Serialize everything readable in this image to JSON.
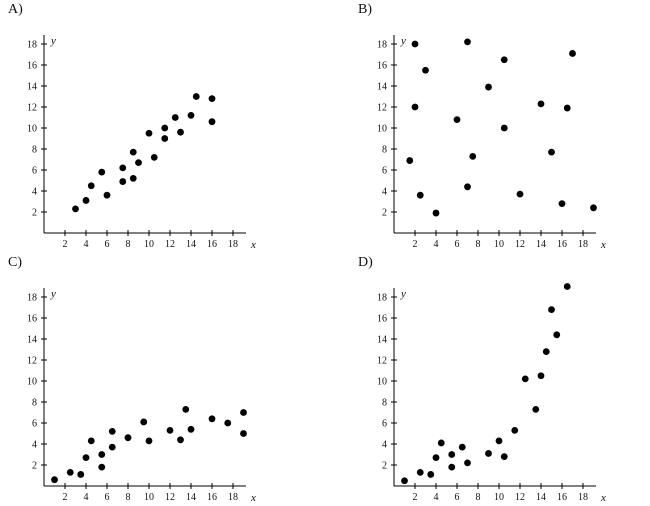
{
  "chart_data": [
    {
      "type": "scatter",
      "label": "A)",
      "xlabel": "x",
      "ylabel": "y",
      "xlim": [
        0,
        20
      ],
      "ylim": [
        0,
        20
      ],
      "x_ticks": [
        "2",
        "4",
        "6",
        "8",
        "10",
        "12",
        "14",
        "16",
        "18"
      ],
      "y_ticks": [
        "2",
        "4",
        "6",
        "8",
        "10",
        "12",
        "14",
        "16",
        "18"
      ],
      "x": [
        3,
        4,
        4.5,
        5.5,
        6,
        7.5,
        7.5,
        8.5,
        8.5,
        9,
        10,
        10.5,
        11.5,
        11.5,
        12.5,
        13,
        14,
        14.5,
        16,
        16
      ],
      "y": [
        2.3,
        3.1,
        4.5,
        5.8,
        3.6,
        4.9,
        6.2,
        5.2,
        7.7,
        6.7,
        9.5,
        7.2,
        10,
        9,
        11,
        9.6,
        11.2,
        13,
        12.8,
        10.6
      ]
    },
    {
      "type": "scatter",
      "label": "B)",
      "xlabel": "x",
      "ylabel": "y",
      "xlim": [
        0,
        20
      ],
      "ylim": [
        0,
        20
      ],
      "x_ticks": [
        "2",
        "4",
        "6",
        "8",
        "10",
        "12",
        "14",
        "16",
        "18"
      ],
      "y_ticks": [
        "2",
        "4",
        "6",
        "8",
        "10",
        "12",
        "14",
        "16",
        "18"
      ],
      "x": [
        1.5,
        2,
        2,
        2.5,
        3,
        4,
        6,
        7,
        7,
        7.5,
        9,
        10.5,
        10.5,
        12,
        14,
        15,
        16,
        16.5,
        17,
        19
      ],
      "y": [
        6.9,
        18,
        12,
        3.6,
        15.5,
        1.9,
        10.8,
        18.2,
        4.4,
        7.3,
        13.9,
        16.5,
        10,
        3.7,
        12.3,
        7.7,
        2.8,
        11.9,
        17.1,
        2.4
      ]
    },
    {
      "type": "scatter",
      "label": "C)",
      "xlabel": "x",
      "ylabel": "y",
      "xlim": [
        0,
        20
      ],
      "ylim": [
        0,
        20
      ],
      "x_ticks": [
        "2",
        "4",
        "6",
        "8",
        "10",
        "12",
        "14",
        "16",
        "18"
      ],
      "y_ticks": [
        "2",
        "4",
        "6",
        "8",
        "10",
        "12",
        "14",
        "16",
        "18"
      ],
      "x": [
        1,
        2.5,
        3.5,
        4,
        4.5,
        5.5,
        5.5,
        6.5,
        6.5,
        8,
        9.5,
        10,
        12,
        13,
        13.5,
        14,
        16,
        17.5,
        19,
        19
      ],
      "y": [
        0.6,
        1.3,
        1.1,
        2.7,
        4.3,
        1.8,
        3,
        5.2,
        3.7,
        4.6,
        6.1,
        4.3,
        5.3,
        4.4,
        7.3,
        5.4,
        6.4,
        6,
        7,
        5
      ]
    },
    {
      "type": "scatter",
      "label": "D)",
      "xlabel": "x",
      "ylabel": "y",
      "xlim": [
        0,
        20
      ],
      "ylim": [
        0,
        20
      ],
      "x_ticks": [
        "2",
        "4",
        "6",
        "8",
        "10",
        "12",
        "14",
        "16",
        "18"
      ],
      "y_ticks": [
        "2",
        "4",
        "6",
        "8",
        "10",
        "12",
        "14",
        "16",
        "18"
      ],
      "x": [
        1,
        2.5,
        3.5,
        4,
        4.5,
        5.5,
        5.5,
        6.5,
        7,
        9,
        10,
        10.5,
        11.5,
        12.5,
        13.5,
        14,
        14.5,
        15,
        15.5,
        16.5
      ],
      "y": [
        0.5,
        1.3,
        1.1,
        2.7,
        4.1,
        1.8,
        3,
        3.7,
        2.2,
        3.1,
        4.3,
        2.8,
        5.3,
        10.2,
        7.3,
        10.5,
        12.8,
        16.8,
        14.4,
        19
      ]
    }
  ]
}
